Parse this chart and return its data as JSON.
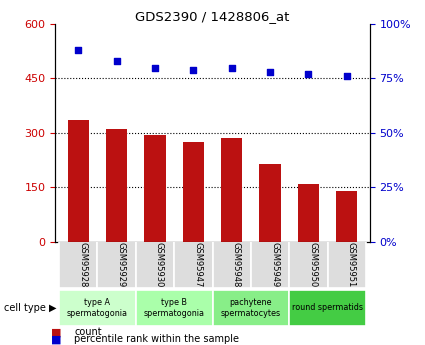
{
  "title": "GDS2390 / 1428806_at",
  "samples": [
    "GSM95928",
    "GSM95929",
    "GSM95930",
    "GSM95947",
    "GSM95948",
    "GSM95949",
    "GSM95950",
    "GSM95951"
  ],
  "counts": [
    335,
    310,
    295,
    275,
    285,
    215,
    160,
    140
  ],
  "percentiles": [
    88,
    83,
    80,
    79,
    80,
    78,
    77,
    76
  ],
  "bar_color": "#bb1111",
  "dot_color": "#0000cc",
  "left_ylim": [
    0,
    600
  ],
  "left_yticks": [
    0,
    150,
    300,
    450,
    600
  ],
  "right_ylim": [
    0,
    100
  ],
  "right_yticks": [
    0,
    25,
    50,
    75,
    100
  ],
  "right_yticklabels": [
    "0",
    "25",
    "50",
    "75",
    "100%"
  ],
  "hline_values": [
    150,
    300,
    450
  ],
  "cell_types": [
    {
      "label": "type A\nspermatogonia",
      "indices": [
        0,
        1
      ],
      "color": "#ccffcc"
    },
    {
      "label": "type B\nspermatogonia",
      "indices": [
        2,
        3
      ],
      "color": "#aaffaa"
    },
    {
      "label": "pachytene\nspermatocytes",
      "indices": [
        4,
        5
      ],
      "color": "#88ee88"
    },
    {
      "label": "round spermatids",
      "indices": [
        6,
        7
      ],
      "color": "#44cc44"
    }
  ],
  "sample_box_color": "#dddddd",
  "legend_count_color": "#bb1111",
  "legend_dot_color": "#0000cc",
  "cell_type_label": "cell type",
  "left_tick_color": "#cc0000",
  "right_tick_color": "#0000cc",
  "right_yticklabels_full": [
    "0%",
    "25%",
    "50%",
    "75%",
    "100%"
  ]
}
